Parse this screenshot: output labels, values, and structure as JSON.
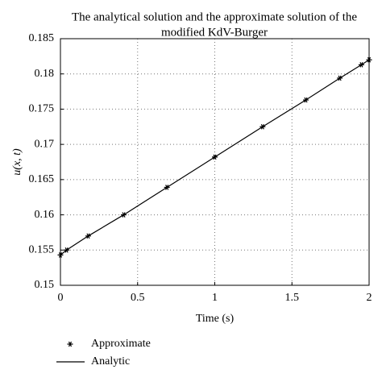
{
  "chart_data": {
    "type": "line",
    "title": [
      "The analytical solution and the approximate solution of the",
      "modified KdV-Burger"
    ],
    "x_label": "Time (s)",
    "y_label": "u(x, t)",
    "x": [
      0,
      0.04,
      0.18,
      0.41,
      0.69,
      1.0,
      1.31,
      1.59,
      1.81,
      1.95,
      2.0
    ],
    "series": [
      {
        "name": "Approximate",
        "color": "#000000",
        "style": "marker",
        "values": [
          0.1543,
          0.155,
          0.157,
          0.16,
          0.1639,
          0.1682,
          0.1725,
          0.1763,
          0.1794,
          0.1813,
          0.182
        ]
      },
      {
        "name": "Analytic",
        "color": "#000000",
        "style": "line",
        "values": [
          0.1543,
          0.155,
          0.157,
          0.16,
          0.1639,
          0.1682,
          0.1725,
          0.1763,
          0.1794,
          0.1813,
          0.182
        ]
      }
    ],
    "xlim": [
      0,
      2
    ],
    "xticks": [
      0,
      0.5,
      1,
      1.5,
      2
    ],
    "ylim": [
      0.15,
      0.185
    ],
    "yticks": [
      0.15,
      0.155,
      0.16,
      0.165,
      0.17,
      0.175,
      0.18,
      0.185
    ],
    "grid": true,
    "legend_position": "bottom"
  }
}
